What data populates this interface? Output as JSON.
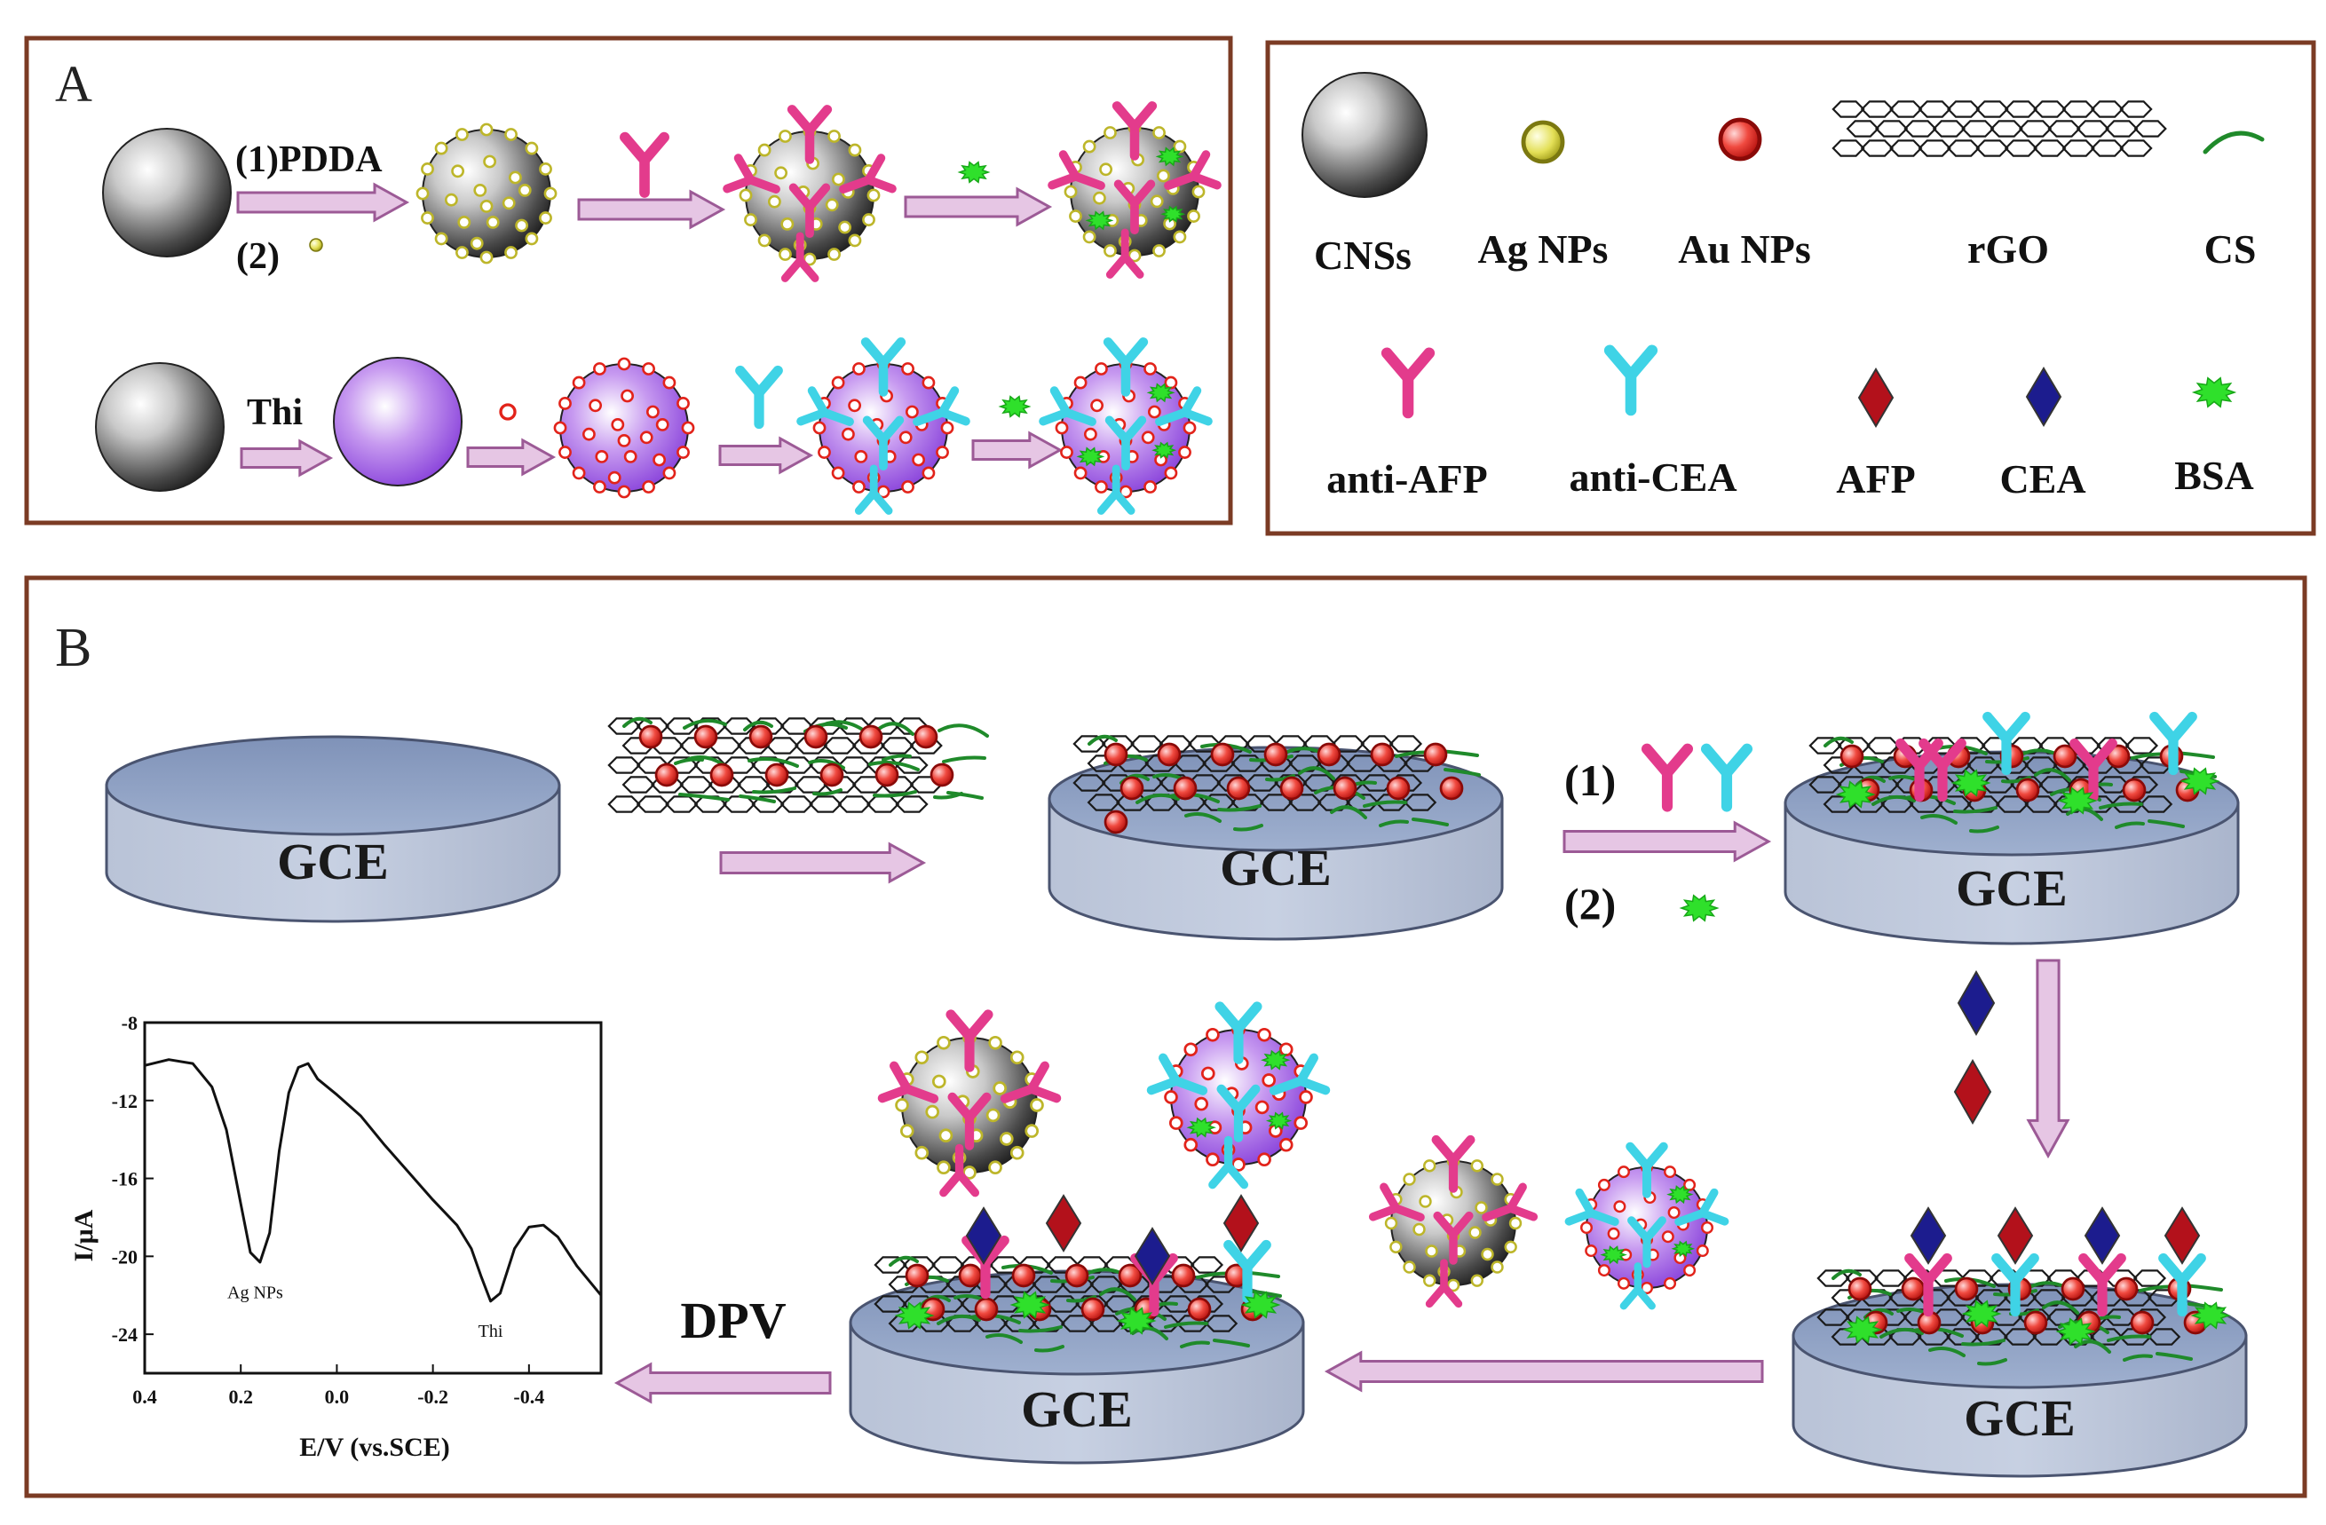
{
  "panel_a": {
    "label": "A",
    "row1": {
      "step1_label": "(1)PDDA",
      "step2_label": "(2)"
    },
    "row2": {
      "step1_label": "Thi"
    }
  },
  "legend": {
    "items": [
      {
        "key": "cns",
        "label": "CNSs"
      },
      {
        "key": "ag",
        "label": "Ag NPs"
      },
      {
        "key": "au",
        "label": "Au NPs"
      },
      {
        "key": "rgo",
        "label": "rGO"
      },
      {
        "key": "cs",
        "label": "CS"
      },
      {
        "key": "anti_afp",
        "label": "anti-AFP"
      },
      {
        "key": "anti_cea",
        "label": "anti-CEA"
      },
      {
        "key": "afp",
        "label": "AFP"
      },
      {
        "key": "cea",
        "label": "CEA"
      },
      {
        "key": "bsa",
        "label": "BSA"
      }
    ]
  },
  "panel_b": {
    "label": "B",
    "electrode_label": "GCE",
    "step_labels": {
      "step1": "(1)",
      "step2": "(2)"
    },
    "method_label": "DPV"
  },
  "colors": {
    "frame": "#7b3b24",
    "arrow_fill": "#e6c6e4",
    "arrow_stroke": "#9c5a96",
    "anti_afp": "#e33b8c",
    "anti_cea": "#3fd3e6",
    "afp": "#b3111b",
    "cea": "#1c1c8e",
    "bsa": "#2fe02b",
    "ag": "#d8d43a",
    "au": "#e2231a",
    "cs": "#1f8a2a",
    "electrode": "#aeb9d0"
  },
  "chart_data": {
    "type": "line",
    "xlabel": "E/V (vs.SCE)",
    "ylabel": "I/μA",
    "x_ticks": [
      "0.4",
      "0.2",
      "0.0",
      "-0.2",
      "-0.4"
    ],
    "y_ticks": [
      "-8",
      "-12",
      "-16",
      "-20",
      "-24"
    ],
    "xlim": [
      0.4,
      -0.55
    ],
    "ylim": [
      -26,
      -8
    ],
    "x_reversed": true,
    "annotations": [
      {
        "text": "Ag NPs",
        "x": 0.17,
        "y": -21.5
      },
      {
        "text": "Thi",
        "x": -0.32,
        "y": -23.5
      }
    ],
    "series": [
      {
        "x": [
          0.4,
          0.35,
          0.3,
          0.26,
          0.23,
          0.2,
          0.18,
          0.16,
          0.14,
          0.12,
          0.1,
          0.08,
          0.06,
          0.04,
          0.0,
          -0.05,
          -0.1,
          -0.15,
          -0.2,
          -0.25,
          -0.28,
          -0.3,
          -0.32,
          -0.34,
          -0.37,
          -0.4,
          -0.43,
          -0.46,
          -0.5,
          -0.55
        ],
        "y": [
          -10.2,
          -9.9,
          -10.1,
          -11.3,
          -13.5,
          -17.3,
          -19.8,
          -20.3,
          -18.8,
          -14.6,
          -11.6,
          -10.3,
          -10.1,
          -10.9,
          -11.7,
          -12.8,
          -14.3,
          -15.7,
          -17.1,
          -18.4,
          -19.6,
          -21.0,
          -22.3,
          -21.9,
          -19.6,
          -18.5,
          -18.4,
          -19.0,
          -20.5,
          -22.0
        ]
      }
    ]
  }
}
